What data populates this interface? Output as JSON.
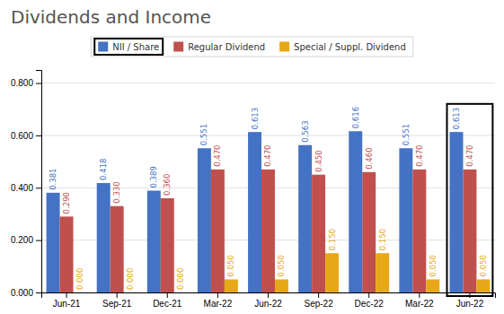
{
  "chart_data": {
    "type": "bar",
    "title": "Dividends and Income",
    "categories": [
      "Jun-21",
      "Sep-21",
      "Dec-21",
      "Mar-22",
      "Jun-22",
      "Sep-22",
      "Dec-22",
      "Mar-22",
      "Jun-22"
    ],
    "series": [
      {
        "name": "NII / Share",
        "color": "#4472C4",
        "values": [
          0.381,
          0.418,
          0.389,
          0.551,
          0.613,
          0.563,
          0.616,
          0.551,
          0.613
        ],
        "value_labels": [
          "0.381",
          "0.418",
          "0.389",
          "0.551",
          "0.613",
          "0.563",
          "0.616",
          "0.551",
          "0.613"
        ]
      },
      {
        "name": "Regular Dividend",
        "color": "#C0504D",
        "values": [
          0.29,
          0.33,
          0.36,
          0.47,
          0.47,
          0.45,
          0.46,
          0.47,
          0.47
        ],
        "value_labels": [
          "0.290",
          "0.330",
          "0.360",
          "0.470",
          "0.470",
          "0.450",
          "0.460",
          "0.470",
          "0.470"
        ]
      },
      {
        "name": "Special / Suppl. Dividend",
        "color": "#E6A817",
        "values": [
          0.0,
          0.0,
          0.0,
          0.05,
          0.05,
          0.15,
          0.15,
          0.05,
          0.05
        ],
        "value_labels": [
          "0.000",
          "0.000",
          "0.000",
          "0.050",
          "0.050",
          "0.150",
          "0.150",
          "0.050",
          "0.050"
        ]
      }
    ],
    "ylim": [
      0,
      0.85
    ],
    "yticks": [
      {
        "value": 0,
        "label": "0.000"
      },
      {
        "value": 0.2,
        "label": "0.200"
      },
      {
        "value": 0.4,
        "label": "0.400"
      },
      {
        "value": 0.6,
        "label": "0.600"
      },
      {
        "value": 0.8,
        "label": "0.800"
      }
    ],
    "grid": true,
    "legend": "top",
    "data_labels": true
  }
}
